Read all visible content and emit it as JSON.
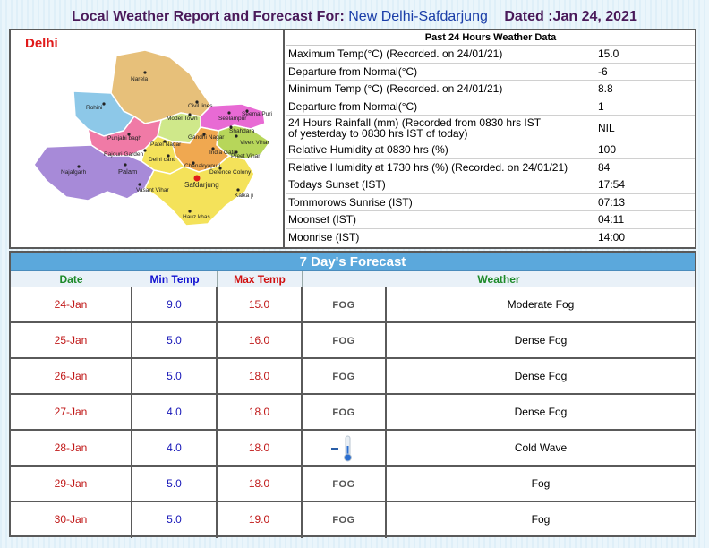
{
  "header": {
    "prefix": "Local Weather Report and Forecast For:",
    "station": "New Delhi-Safdarjung",
    "dated": "Dated :Jan 24, 2021"
  },
  "map": {
    "title": "Delhi",
    "labels": {
      "narela": "Narela",
      "rohini": "Rohini",
      "civil_lines": "Civil lines",
      "model_town": "Model Town",
      "seelampur": "Seelampur",
      "seema_puri": "Seema Puri",
      "shahdara": "Shahdara",
      "punjabi_bagh": "Punjabi bagh",
      "patel_nagar": "Patel Nagar",
      "gandhi_nagar": "Gandhi Nagar",
      "vivek_vihar": "Vivek Vihar",
      "rajouri_garden": "Rajouri Garden",
      "delhi_cant": "Delhi cant",
      "india_gate": "India Gate",
      "preet_vihar": "Preet Vihar",
      "najafgarh": "Najafgarh",
      "palam": "Palam",
      "chanakyapuri": "Chanakyapuri",
      "defence_colony": "Defence Colony",
      "vasant_vihar": "Vasant Vihar",
      "safdarjung": "Safdarjung",
      "kalkaji": "Kalka ji",
      "hauz_khas": "Hauz khas"
    },
    "colors": {
      "north": "#e7c07a",
      "rohini": "#8dc8e8",
      "northeast": "#e86ad4",
      "east": "#b7d65a",
      "west": "#f07aa6",
      "southwest": "#a78ad8",
      "southeast": "#f4e25a",
      "central": "#cfe88a",
      "newdelhi": "#f0a850"
    }
  },
  "past24": {
    "title": "Past 24 Hours Weather Data",
    "rows": [
      {
        "label": "Maximum Temp(°C) (Recorded. on 24/01/21)",
        "value": "15.0"
      },
      {
        "label": "Departure from Normal(°C)",
        "value": "-6"
      },
      {
        "label": "Minimum Temp (°C) (Recorded. on 24/01/21)",
        "value": "8.8"
      },
      {
        "label": "Departure from Normal(°C)",
        "value": "1"
      },
      {
        "label_line1": "24 Hours Rainfall (mm) (Recorded from 0830 hrs IST",
        "label_line2": "of yesterday to 0830 hrs IST of today)",
        "value": "NIL"
      },
      {
        "label": "Relative Humidity at 0830 hrs (%)",
        "value": "100"
      },
      {
        "label": "Relative Humidity at 1730 hrs (%) (Recorded. on 24/01/21)",
        "value": "84"
      },
      {
        "label": "Todays Sunset (IST)",
        "value": "17:54"
      },
      {
        "label": "Tommorows Sunrise (IST)",
        "value": "07:13"
      },
      {
        "label": "Moonset (IST)",
        "value": "04:11"
      },
      {
        "label": "Moonrise (IST)",
        "value": "14:00"
      }
    ]
  },
  "forecast": {
    "title": "7 Day's Forecast",
    "headers": {
      "date": "Date",
      "min": "Min Temp",
      "max": "Max Temp",
      "weather": "Weather"
    },
    "rows": [
      {
        "date": "24-Jan",
        "min": "9.0",
        "max": "15.0",
        "icon": "fog-icon",
        "icon_text": "FOG",
        "weather": "Moderate Fog"
      },
      {
        "date": "25-Jan",
        "min": "5.0",
        "max": "16.0",
        "icon": "fog-icon",
        "icon_text": "FOG",
        "weather": "Dense Fog"
      },
      {
        "date": "26-Jan",
        "min": "5.0",
        "max": "18.0",
        "icon": "fog-icon",
        "icon_text": "FOG",
        "weather": "Dense Fog"
      },
      {
        "date": "27-Jan",
        "min": "4.0",
        "max": "18.0",
        "icon": "fog-icon",
        "icon_text": "FOG",
        "weather": "Dense Fog"
      },
      {
        "date": "28-Jan",
        "min": "4.0",
        "max": "18.0",
        "icon": "thermometer-cold-icon",
        "icon_text": "",
        "weather": "Cold Wave"
      },
      {
        "date": "29-Jan",
        "min": "5.0",
        "max": "18.0",
        "icon": "fog-icon",
        "icon_text": "FOG",
        "weather": "Fog"
      },
      {
        "date": "30-Jan",
        "min": "5.0",
        "max": "19.0",
        "icon": "fog-icon",
        "icon_text": "FOG",
        "weather": "Fog"
      }
    ]
  }
}
